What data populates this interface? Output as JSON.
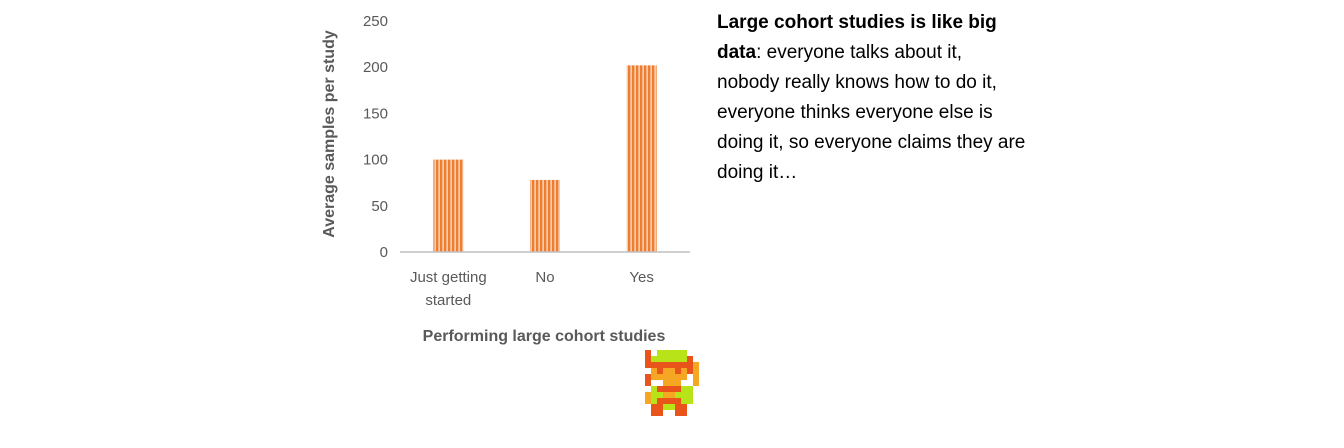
{
  "chart_data": {
    "type": "bar",
    "categories": [
      [
        "Just getting",
        "started"
      ],
      [
        "No"
      ],
      [
        "Yes"
      ]
    ],
    "values": [
      100,
      78,
      202
    ],
    "xlabel": "Performing large cohort studies",
    "ylabel": "Average samples per study",
    "ylim": [
      0,
      250
    ],
    "yticks": [
      "0",
      "50",
      "100",
      "150",
      "200",
      "250"
    ],
    "grid": false,
    "legend": "none",
    "bar_color": "#ED7D31",
    "bar_stripe_color": "#F8CBAD"
  },
  "quote": {
    "bold_part": "Large cohort studies is like big data",
    "rest_part": ": everyone talks about it, nobody really knows how to do it, everyone thinks everyone else is doing it, so everyone claims they are doing it…"
  },
  "sprite": {
    "icon": "pixel-hero-icon",
    "colors": {
      "tunic": "#B8E318",
      "skin": "#F5A623",
      "hair": "#E8541A"
    }
  }
}
